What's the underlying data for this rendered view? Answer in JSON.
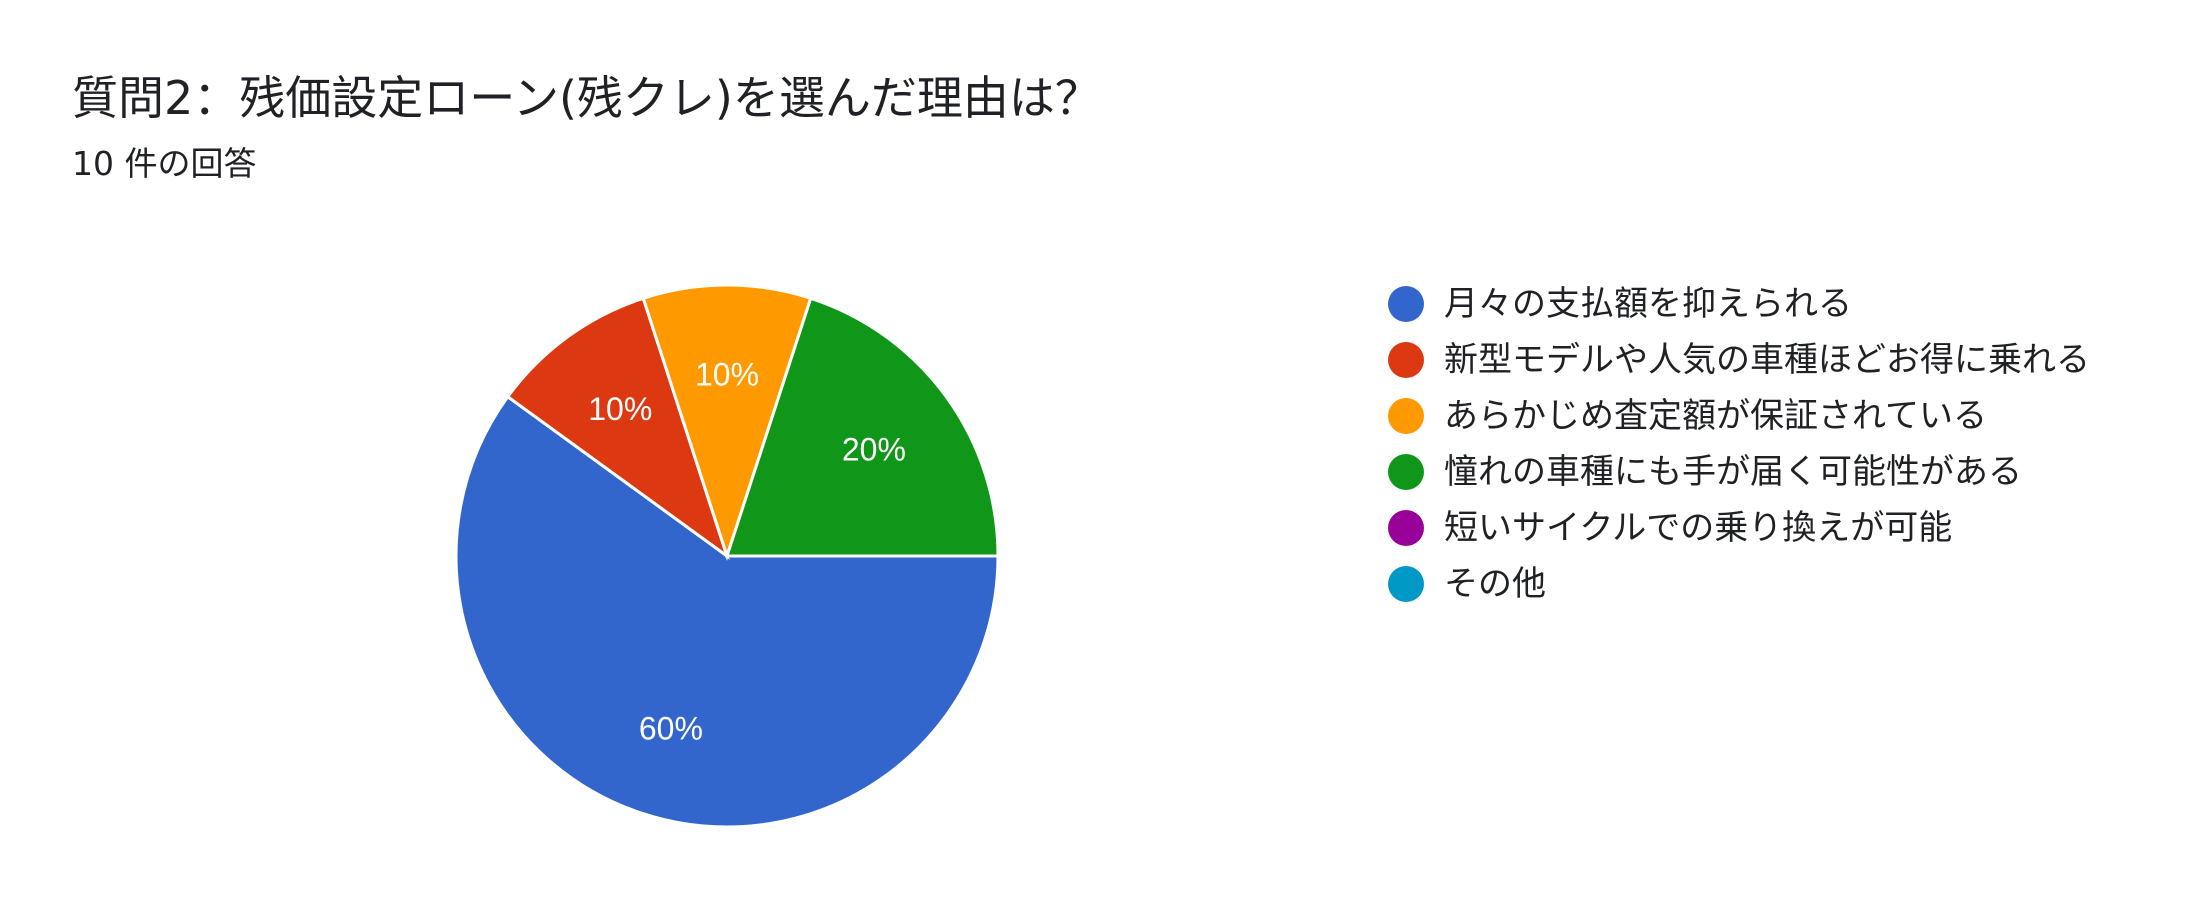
{
  "title": "質問2：残価設定ローン(残クレ)を選んだ理由は？",
  "subtitle": "10 件の回答",
  "chart_data": {
    "type": "pie",
    "title": "質問2：残価設定ローン(残クレ)を選んだ理由は？",
    "subtitle": "10 件の回答",
    "legend_position": "right",
    "slices": [
      {
        "label": "月々の支払額を抑えられる",
        "value": 60,
        "color": "#3366cc",
        "data_label": "60%"
      },
      {
        "label": "新型モデルや人気の車種ほどお得に乗れる",
        "value": 10,
        "color": "#dc3912",
        "data_label": "10%"
      },
      {
        "label": "あらかじめ査定額が保証されている",
        "value": 10,
        "color": "#ff9900",
        "data_label": "10%"
      },
      {
        "label": "憧れの車種にも手が届く可能性がある",
        "value": 20,
        "color": "#109618",
        "data_label": "20%"
      },
      {
        "label": "短いサイクルでの乗り換えが可能",
        "value": 0,
        "color": "#990099",
        "data_label": ""
      },
      {
        "label": "その他",
        "value": 0,
        "color": "#0099c6",
        "data_label": ""
      }
    ]
  }
}
